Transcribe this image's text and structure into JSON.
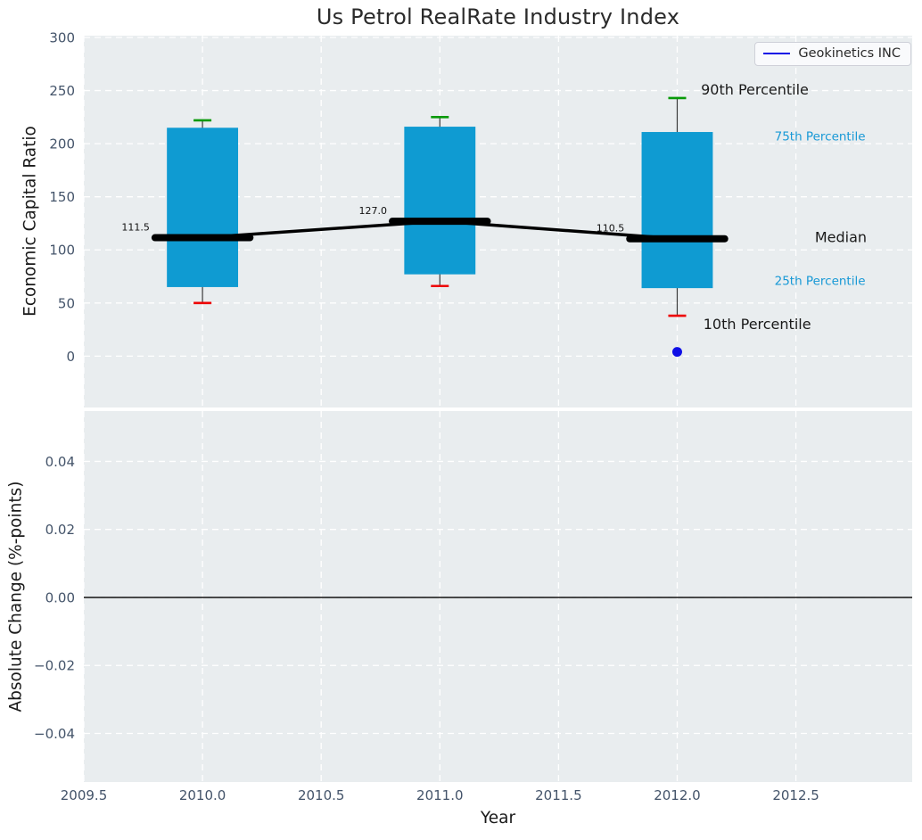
{
  "chart_data": {
    "type": "box",
    "title": "Us Petrol RealRate Industry Index",
    "xlabel": "Year",
    "legend": {
      "label": "Geokinetics INC",
      "line_color": "#0f0fe6",
      "position": "upper right"
    },
    "x": {
      "lim": [
        2009.5,
        2012.99
      ],
      "ticks": [
        {
          "v": 2009.5,
          "label": "2009.5"
        },
        {
          "v": 2010.0,
          "label": "2010.0"
        },
        {
          "v": 2010.5,
          "label": "2010.5"
        },
        {
          "v": 2011.0,
          "label": "2011.0"
        },
        {
          "v": 2011.5,
          "label": "2011.5"
        },
        {
          "v": 2012.0,
          "label": "2012.0"
        },
        {
          "v": 2012.5,
          "label": "2012.5"
        }
      ]
    },
    "panels": [
      {
        "name": "economic-capital-ratio",
        "ylabel": "Economic Capital Ratio",
        "ylim": [
          -48.4,
          301.7
        ],
        "yticks": [
          {
            "v": 300,
            "label": "300"
          },
          {
            "v": 250,
            "label": "250"
          },
          {
            "v": 200,
            "label": "200"
          },
          {
            "v": 150,
            "label": "150"
          },
          {
            "v": 100,
            "label": "100"
          },
          {
            "v": 50,
            "label": "50"
          },
          {
            "v": 0,
            "label": "0"
          }
        ],
        "boxes": [
          {
            "x": 2010,
            "p10": 50,
            "p25": 65,
            "median": 111.5,
            "p75": 215,
            "p90": 222,
            "median_label": "111.5"
          },
          {
            "x": 2011,
            "p10": 66,
            "p25": 77,
            "median": 127.0,
            "p75": 216,
            "p90": 225,
            "median_label": "127.0"
          },
          {
            "x": 2012,
            "p10": 38,
            "p25": 64,
            "median": 110.5,
            "p75": 211,
            "p90": 243,
            "median_label": "110.5"
          }
        ],
        "company_point": {
          "series": "Geokinetics INC",
          "x": 2012,
          "y": 4
        },
        "annotations": [
          {
            "text": "90th Percentile",
            "x": 2012.1,
            "y": 251,
            "color": "#1a1a1a",
            "size": 16
          },
          {
            "text": "75th Percentile",
            "x": 2012.41,
            "y": 207,
            "color": "#1899d6",
            "size": 13.5
          },
          {
            "text": "Median",
            "x": 2012.58,
            "y": 112,
            "color": "#1a1a1a",
            "size": 16
          },
          {
            "text": "25th Percentile",
            "x": 2012.41,
            "y": 71,
            "color": "#1899d6",
            "size": 13.5
          },
          {
            "text": "10th Percentile",
            "x": 2012.11,
            "y": 30,
            "color": "#1a1a1a",
            "size": 16
          }
        ]
      },
      {
        "name": "absolute-change",
        "ylabel": "Absolute Change (%-points)",
        "ylim": [
          -0.0543,
          0.0548
        ],
        "yticks": [
          {
            "v": 0.04,
            "label": "0.04"
          },
          {
            "v": 0.02,
            "label": "0.02"
          },
          {
            "v": 0.0,
            "label": "0.00"
          },
          {
            "v": -0.02,
            "label": "−0.02"
          },
          {
            "v": -0.04,
            "label": "−0.04"
          }
        ],
        "zero_line": 0.0
      }
    ],
    "colors": {
      "box": "#0f9bd2",
      "p90_cap": "#089a08",
      "p10_cap": "#ee0000",
      "median_line": "#000000",
      "company_point": "#0f0fe6",
      "plot_bg": "#e9edef",
      "grid": "#ffffff",
      "tick_label": "#44546a",
      "annotation_percentile": "#1899d6"
    }
  }
}
